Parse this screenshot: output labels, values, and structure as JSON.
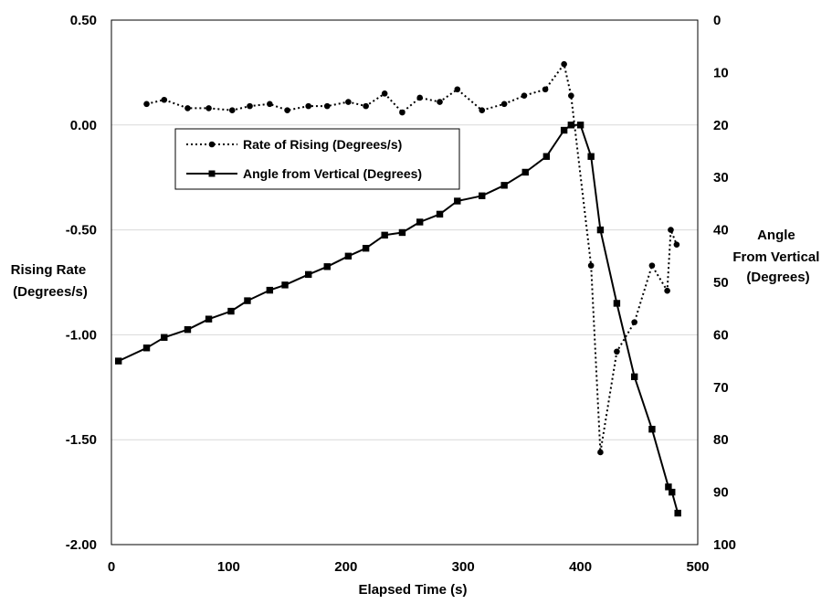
{
  "chart_data": {
    "type": "line",
    "xlabel": "Elapsed Time (s)",
    "ylabel_left": [
      "Rising Rate",
      "(Degrees/s)"
    ],
    "ylabel_right": [
      "Angle",
      "From Vertical",
      "(Degrees)"
    ],
    "xlim": [
      0,
      500
    ],
    "ylim_left": [
      -2.0,
      0.5
    ],
    "ylim_right": [
      0,
      100
    ],
    "y_right_reversed": true,
    "x_ticks": [
      "0",
      "100",
      "200",
      "300",
      "400",
      "500"
    ],
    "y_left_ticks": [
      "0.50",
      "0.00",
      "-0.50",
      "-1.00",
      "-1.50",
      "-2.00"
    ],
    "y_right_ticks": [
      "0",
      "10",
      "20",
      "30",
      "40",
      "50",
      "60",
      "70",
      "80",
      "90",
      "100"
    ],
    "grid": true,
    "legend_position": "upper-left inside plot",
    "series": [
      {
        "name": "Rate of Rising (Degrees/s)",
        "axis": "left",
        "style": "dotted",
        "marker": "circle",
        "color": "#000000",
        "x": [
          30,
          45,
          65,
          83,
          103,
          118,
          135,
          150,
          168,
          184,
          202,
          217,
          233,
          248,
          263,
          280,
          295,
          316,
          335,
          352,
          370,
          386,
          392,
          409,
          417,
          431,
          446,
          461,
          474,
          477,
          482
        ],
        "y": [
          0.1,
          0.12,
          0.08,
          0.08,
          0.07,
          0.09,
          0.1,
          0.07,
          0.09,
          0.09,
          0.11,
          0.09,
          0.15,
          0.06,
          0.13,
          0.11,
          0.17,
          0.07,
          0.1,
          0.14,
          0.17,
          0.29,
          0.14,
          -0.67,
          -1.56,
          -1.08,
          -0.94,
          -0.67,
          -0.79,
          -0.5,
          -0.57
        ]
      },
      {
        "name": "Angle from Vertical (Degrees)",
        "axis": "right",
        "style": "solid",
        "marker": "square",
        "color": "#000000",
        "x": [
          6,
          30,
          45,
          65,
          83,
          102,
          116,
          135,
          148,
          168,
          184,
          202,
          217,
          233,
          248,
          263,
          280,
          295,
          316,
          335,
          353,
          371,
          386,
          392,
          400,
          409,
          417,
          431,
          446,
          461,
          475,
          478,
          483
        ],
        "y": [
          65,
          62.5,
          60.5,
          59,
          57,
          55.5,
          53.5,
          51.5,
          50.5,
          48.5,
          47,
          45,
          43.5,
          41,
          40.5,
          38.5,
          37,
          34.5,
          33.5,
          31.5,
          29,
          26,
          21,
          20,
          20,
          26,
          40,
          54,
          68,
          78,
          89,
          90,
          94
        ]
      }
    ]
  }
}
